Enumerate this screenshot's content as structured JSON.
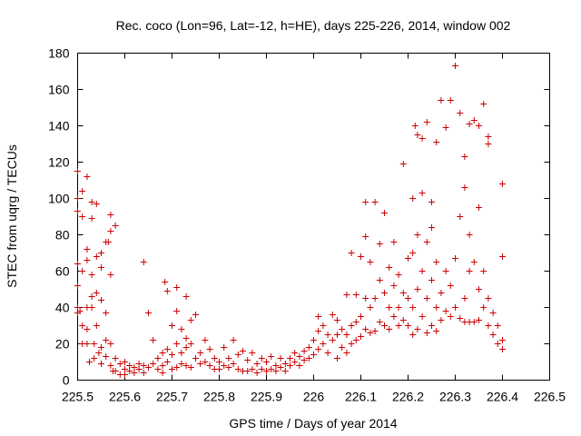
{
  "chart_data": {
    "type": "scatter",
    "title": "Rec. coco (Lon=96, Lat=-12, h=HE), days 225-226, 2014, window 002",
    "xlabel": "GPS time / Days of year 2014",
    "ylabel": "STEC from uqrg / TECUs",
    "xlim": [
      225.5,
      226.5
    ],
    "ylim": [
      0,
      180
    ],
    "xticks": [
      225.5,
      225.6,
      225.7,
      225.8,
      225.9,
      226,
      226.1,
      226.2,
      226.3,
      226.4,
      226.5
    ],
    "xtick_labels": [
      "225.5",
      "225.6",
      "225.7",
      "225.8",
      "225.9",
      "226",
      "226.1",
      "226.2",
      "226.3",
      "226.4",
      "226.5"
    ],
    "yticks": [
      0,
      20,
      40,
      60,
      80,
      100,
      120,
      140,
      160,
      180
    ],
    "ytick_labels": [
      "0",
      "20",
      "40",
      "60",
      "80",
      "100",
      "120",
      "140",
      "160",
      "180"
    ],
    "grid": false,
    "legend": "none",
    "marker": "+",
    "color": "#cc0000",
    "series": [
      {
        "points": [
          [
            225.5,
            115
          ],
          [
            225.5,
            100
          ],
          [
            225.5,
            93
          ],
          [
            225.5,
            64
          ],
          [
            225.5,
            52
          ],
          [
            225.5,
            40
          ],
          [
            225.5,
            37
          ],
          [
            225.505,
            38
          ],
          [
            225.51,
            104
          ],
          [
            225.51,
            90
          ],
          [
            225.51,
            60
          ],
          [
            225.51,
            30
          ],
          [
            225.51,
            20
          ],
          [
            225.52,
            112
          ],
          [
            225.52,
            72
          ],
          [
            225.52,
            66
          ],
          [
            225.52,
            40
          ],
          [
            225.52,
            28
          ],
          [
            225.52,
            20
          ],
          [
            225.525,
            10
          ],
          [
            225.53,
            98
          ],
          [
            225.53,
            89
          ],
          [
            225.53,
            58
          ],
          [
            225.53,
            46
          ],
          [
            225.53,
            40
          ],
          [
            225.535,
            12
          ],
          [
            225.535,
            20
          ],
          [
            225.54,
            97
          ],
          [
            225.54,
            68
          ],
          [
            225.54,
            48
          ],
          [
            225.54,
            30
          ],
          [
            225.545,
            15
          ],
          [
            225.55,
            70
          ],
          [
            225.55,
            62
          ],
          [
            225.55,
            44
          ],
          [
            225.55,
            18
          ],
          [
            225.55,
            9
          ],
          [
            225.56,
            76
          ],
          [
            225.56,
            37
          ],
          [
            225.56,
            22
          ],
          [
            225.56,
            13
          ],
          [
            225.565,
            76
          ],
          [
            225.57,
            91
          ],
          [
            225.57,
            82
          ],
          [
            225.57,
            58
          ],
          [
            225.57,
            20
          ],
          [
            225.57,
            8
          ],
          [
            225.575,
            5
          ],
          [
            225.58,
            85
          ],
          [
            225.58,
            12
          ],
          [
            225.58,
            5
          ],
          [
            225.59,
            9
          ],
          [
            225.59,
            3
          ],
          [
            225.6,
            10
          ],
          [
            225.6,
            6
          ],
          [
            225.6,
            3
          ],
          [
            225.61,
            8
          ],
          [
            225.61,
            5
          ],
          [
            225.62,
            7
          ],
          [
            225.62,
            4
          ],
          [
            225.63,
            9
          ],
          [
            225.63,
            6
          ],
          [
            225.64,
            65
          ],
          [
            225.64,
            8
          ],
          [
            225.64,
            4
          ],
          [
            225.65,
            37
          ],
          [
            225.65,
            7
          ],
          [
            225.66,
            22
          ],
          [
            225.66,
            9
          ],
          [
            225.67,
            12
          ],
          [
            225.67,
            6
          ],
          [
            225.68,
            15
          ],
          [
            225.68,
            8
          ],
          [
            225.68,
            4
          ],
          [
            225.685,
            54
          ],
          [
            225.69,
            49
          ],
          [
            225.69,
            17
          ],
          [
            225.69,
            10
          ],
          [
            225.7,
            30
          ],
          [
            225.7,
            14
          ],
          [
            225.7,
            6
          ],
          [
            225.71,
            51
          ],
          [
            225.71,
            38
          ],
          [
            225.71,
            20
          ],
          [
            225.71,
            7
          ],
          [
            225.72,
            28
          ],
          [
            225.72,
            15
          ],
          [
            225.72,
            9
          ],
          [
            225.73,
            46
          ],
          [
            225.73,
            23
          ],
          [
            225.73,
            18
          ],
          [
            225.73,
            8
          ],
          [
            225.74,
            33
          ],
          [
            225.74,
            20
          ],
          [
            225.74,
            7
          ],
          [
            225.75,
            36
          ],
          [
            225.75,
            12
          ],
          [
            225.76,
            15
          ],
          [
            225.76,
            9
          ],
          [
            225.77,
            22
          ],
          [
            225.77,
            10
          ],
          [
            225.78,
            17
          ],
          [
            225.78,
            8
          ],
          [
            225.79,
            12
          ],
          [
            225.79,
            6
          ],
          [
            225.8,
            10
          ],
          [
            225.8,
            6
          ],
          [
            225.81,
            18
          ],
          [
            225.81,
            8
          ],
          [
            225.82,
            12
          ],
          [
            225.82,
            7
          ],
          [
            225.83,
            22
          ],
          [
            225.83,
            9
          ],
          [
            225.84,
            14
          ],
          [
            225.84,
            6
          ],
          [
            225.85,
            16
          ],
          [
            225.85,
            5
          ],
          [
            225.86,
            11
          ],
          [
            225.86,
            5
          ],
          [
            225.87,
            15
          ],
          [
            225.87,
            6
          ],
          [
            225.88,
            9
          ],
          [
            225.88,
            4
          ],
          [
            225.89,
            12
          ],
          [
            225.89,
            6
          ],
          [
            225.9,
            10
          ],
          [
            225.9,
            5
          ],
          [
            225.91,
            13
          ],
          [
            225.91,
            6
          ],
          [
            225.92,
            8
          ],
          [
            225.92,
            5
          ],
          [
            225.93,
            12
          ],
          [
            225.93,
            7
          ],
          [
            225.94,
            9
          ],
          [
            225.94,
            5
          ],
          [
            225.95,
            12
          ],
          [
            225.95,
            8
          ],
          [
            225.96,
            15
          ],
          [
            225.96,
            10
          ],
          [
            225.97,
            13
          ],
          [
            225.97,
            8
          ],
          [
            225.98,
            16
          ],
          [
            225.98,
            11
          ],
          [
            225.99,
            18
          ],
          [
            225.99,
            12
          ],
          [
            226.0,
            22
          ],
          [
            226.0,
            14
          ],
          [
            226.01,
            35
          ],
          [
            226.01,
            27
          ],
          [
            226.01,
            17
          ],
          [
            226.02,
            30
          ],
          [
            226.02,
            20
          ],
          [
            226.03,
            25
          ],
          [
            226.03,
            15
          ],
          [
            226.04,
            36
          ],
          [
            226.04,
            22
          ],
          [
            226.05,
            33
          ],
          [
            226.05,
            25
          ],
          [
            226.05,
            12
          ],
          [
            226.06,
            28
          ],
          [
            226.06,
            18
          ],
          [
            226.07,
            47
          ],
          [
            226.07,
            25
          ],
          [
            226.07,
            15
          ],
          [
            226.08,
            70
          ],
          [
            226.08,
            30
          ],
          [
            226.08,
            20
          ],
          [
            226.09,
            47
          ],
          [
            226.09,
            32
          ],
          [
            226.09,
            22
          ],
          [
            226.1,
            68
          ],
          [
            226.1,
            35
          ],
          [
            226.1,
            24
          ],
          [
            226.11,
            98
          ],
          [
            226.11,
            79
          ],
          [
            226.11,
            45
          ],
          [
            226.11,
            28
          ],
          [
            226.12,
            65
          ],
          [
            226.12,
            40
          ],
          [
            226.12,
            26
          ],
          [
            226.13,
            98
          ],
          [
            226.13,
            45
          ],
          [
            226.13,
            27
          ],
          [
            226.14,
            75
          ],
          [
            226.14,
            55
          ],
          [
            226.14,
            32
          ],
          [
            226.15,
            92
          ],
          [
            226.15,
            48
          ],
          [
            226.15,
            30
          ],
          [
            226.16,
            62
          ],
          [
            226.16,
            40
          ],
          [
            226.16,
            28
          ],
          [
            226.17,
            76
          ],
          [
            226.17,
            52
          ],
          [
            226.17,
            35
          ],
          [
            226.18,
            58
          ],
          [
            226.18,
            40
          ],
          [
            226.18,
            30
          ],
          [
            226.19,
            119
          ],
          [
            226.19,
            48
          ],
          [
            226.19,
            33
          ],
          [
            226.2,
            67
          ],
          [
            226.2,
            45
          ],
          [
            226.2,
            30
          ],
          [
            226.21,
            100
          ],
          [
            226.21,
            70
          ],
          [
            226.21,
            40
          ],
          [
            226.21,
            25
          ],
          [
            226.215,
            140
          ],
          [
            226.22,
            135
          ],
          [
            226.22,
            80
          ],
          [
            226.22,
            50
          ],
          [
            226.22,
            28
          ],
          [
            226.23,
            103
          ],
          [
            226.23,
            133
          ],
          [
            226.23,
            60
          ],
          [
            226.23,
            35
          ],
          [
            226.24,
            142
          ],
          [
            226.24,
            76
          ],
          [
            226.24,
            45
          ],
          [
            226.24,
            26
          ],
          [
            226.25,
            98
          ],
          [
            226.25,
            84
          ],
          [
            226.25,
            55
          ],
          [
            226.25,
            30
          ],
          [
            226.26,
            131
          ],
          [
            226.26,
            65
          ],
          [
            226.26,
            40
          ],
          [
            226.26,
            27
          ],
          [
            226.27,
            154
          ],
          [
            226.27,
            48
          ],
          [
            226.27,
            33
          ],
          [
            226.28,
            139
          ],
          [
            226.28,
            60
          ],
          [
            226.28,
            38
          ],
          [
            226.29,
            154
          ],
          [
            226.29,
            52
          ],
          [
            226.29,
            35
          ],
          [
            226.3,
            173
          ],
          [
            226.3,
            67
          ],
          [
            226.3,
            40
          ],
          [
            226.31,
            147
          ],
          [
            226.31,
            90
          ],
          [
            226.31,
            34
          ],
          [
            226.32,
            123
          ],
          [
            226.32,
            106
          ],
          [
            226.32,
            45
          ],
          [
            226.32,
            32
          ],
          [
            226.33,
            141
          ],
          [
            226.33,
            80
          ],
          [
            226.33,
            60
          ],
          [
            226.33,
            32
          ],
          [
            226.34,
            143
          ],
          [
            226.34,
            65
          ],
          [
            226.34,
            32
          ],
          [
            226.35,
            140
          ],
          [
            226.35,
            95
          ],
          [
            226.35,
            50
          ],
          [
            226.35,
            33
          ],
          [
            226.36,
            152
          ],
          [
            226.36,
            60
          ],
          [
            226.36,
            40
          ],
          [
            226.37,
            134
          ],
          [
            226.37,
            130
          ],
          [
            226.37,
            45
          ],
          [
            226.37,
            30
          ],
          [
            226.38,
            37
          ],
          [
            226.38,
            25
          ],
          [
            226.39,
            30
          ],
          [
            226.39,
            20
          ],
          [
            226.4,
            108
          ],
          [
            226.4,
            68
          ],
          [
            226.4,
            22
          ],
          [
            226.4,
            17
          ]
        ]
      }
    ]
  }
}
